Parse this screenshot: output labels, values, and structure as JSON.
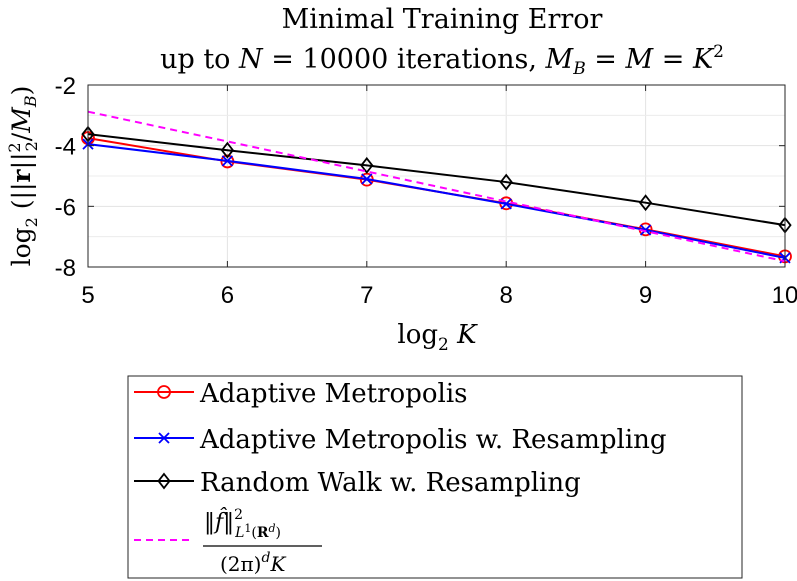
{
  "chart_data": {
    "type": "line",
    "title_line1": "Minimal Training Error",
    "title_line2": "up to N = 10000 iterations, M_B = M = K^2",
    "xlabel": "log2 K",
    "ylabel": "log2(||r||_2^2 / M_B)",
    "x": [
      5,
      6,
      7,
      8,
      9,
      10
    ],
    "xlim": [
      5,
      10
    ],
    "ylim": [
      -8,
      -2
    ],
    "xticks": [
      "5",
      "6",
      "7",
      "8",
      "9",
      "10"
    ],
    "yticks": [
      "-2",
      "-4",
      "-6",
      "-8"
    ],
    "grid": true,
    "legend_position": "below",
    "series": [
      {
        "name": "Adaptive Metropolis",
        "color": "#ff0000",
        "marker": "circle",
        "linestyle": "solid",
        "values": [
          -3.75,
          -4.52,
          -5.12,
          -5.9,
          -6.76,
          -7.65
        ]
      },
      {
        "name": "Adaptive Metropolis w. Resampling",
        "color": "#0000ff",
        "marker": "x",
        "linestyle": "solid",
        "values": [
          -3.95,
          -4.5,
          -5.1,
          -5.92,
          -6.78,
          -7.7
        ]
      },
      {
        "name": "Random Walk w. Resampling",
        "color": "#000000",
        "marker": "diamond",
        "linestyle": "solid",
        "values": [
          -3.62,
          -4.15,
          -4.65,
          -5.2,
          -5.88,
          -6.62
        ]
      },
      {
        "name": "||f̂||^2_{L1(R^d)} / ((2π)^d K)",
        "color": "#ff00ff",
        "marker": "none",
        "linestyle": "dashed",
        "values": [
          -2.88,
          -3.86,
          -4.85,
          -5.84,
          -6.82,
          -7.81
        ]
      }
    ]
  }
}
